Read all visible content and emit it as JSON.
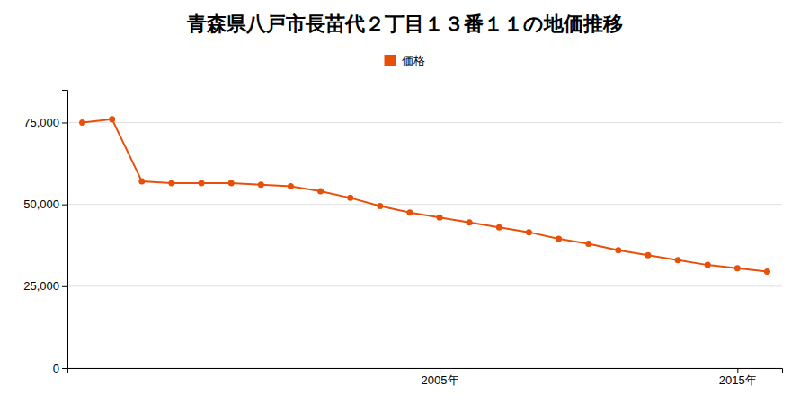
{
  "chart_data": {
    "type": "line",
    "title": "青森県八戸市長苗代２丁目１３番１１の地価推移",
    "x": [
      1993,
      1994,
      1995,
      1996,
      1997,
      1998,
      1999,
      2000,
      2001,
      2002,
      2003,
      2004,
      2005,
      2006,
      2007,
      2008,
      2009,
      2010,
      2011,
      2012,
      2013,
      2014,
      2015,
      2016
    ],
    "series": [
      {
        "name": "価格",
        "color": "#e8500a",
        "marker": "circle",
        "values": [
          75000,
          76000,
          57000,
          56500,
          56500,
          56500,
          56000,
          55500,
          54000,
          52000,
          49500,
          47500,
          46000,
          44500,
          43000,
          41500,
          39500,
          38000,
          36000,
          34500,
          33000,
          31500,
          30500,
          29500
        ]
      }
    ],
    "xlim": [
      1992.5,
      2016.5
    ],
    "xticks": [
      {
        "value": 2005,
        "label": "2005年"
      },
      {
        "value": 2015,
        "label": "2015年"
      }
    ],
    "ylim": [
      0,
      85000
    ],
    "yticks": [
      0,
      {
        "value": 25000,
        "label": "25,000"
      },
      {
        "value": 50000,
        "label": "50,000"
      },
      {
        "value": 75000,
        "label": "75,000"
      }
    ],
    "grid": true,
    "legend": "top"
  }
}
